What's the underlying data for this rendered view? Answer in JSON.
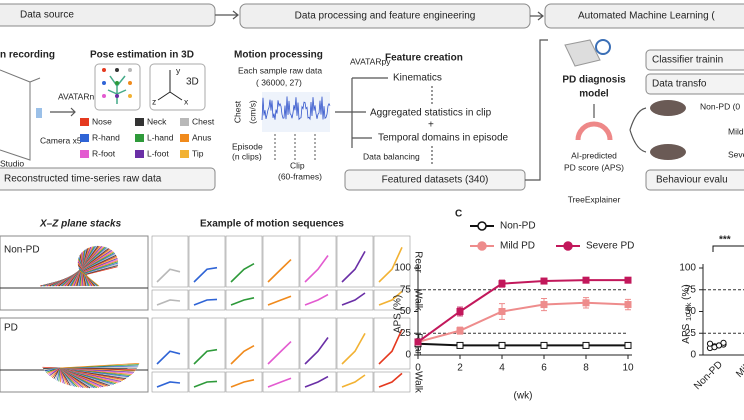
{
  "data_source": {
    "header": "Data source",
    "recording": "n recording",
    "pose": "Pose estimation in 3D",
    "net": "AVATARnet",
    "camera": "Camera x5",
    "studio": "Studio",
    "axis3d": "3D",
    "axes": [
      "y",
      "z",
      "x"
    ],
    "keypoints": [
      {
        "name": "Nose",
        "color": "#e5391f"
      },
      {
        "name": "Neck",
        "color": "#333333"
      },
      {
        "name": "Chest",
        "color": "#b8b8b8"
      },
      {
        "name": "R-hand",
        "color": "#2f64d6"
      },
      {
        "name": "L-hand",
        "color": "#2e9a3a"
      },
      {
        "name": "Anus",
        "color": "#f08a1c"
      },
      {
        "name": "R-foot",
        "color": "#e35bd0"
      },
      {
        "name": "L-foot",
        "color": "#6a2fa6"
      },
      {
        "name": "Tip",
        "color": "#f2b233"
      }
    ],
    "footer": "Reconstructed time-series raw data"
  },
  "processing": {
    "header": "Data processing and feature engineering",
    "motion": "Motion processing",
    "sample": "Each sample raw data",
    "shape": "( 36000, 27)",
    "chest": "Chest",
    "chest_unit": "(cm/s)",
    "episode": "Episode",
    "episode_n": "(n clips)",
    "clip": "Clip",
    "clip_frames": "(60-frames)",
    "tool": "AVATARpy",
    "feature": "Feature creation",
    "kinematics": "Kinematics",
    "aggregated": "Aggregated statistics in clip",
    "plus": "+",
    "temporal": "Temporal domains in episode",
    "balancing": "Data balancing",
    "featured": "Featured datasets (340)"
  },
  "automl": {
    "header": "Automated Machine Learning (",
    "classifier": "Classifier trainin",
    "transform": "Data transfo",
    "model_1": "PD diagnosis",
    "model_2": "model",
    "aps_1": "AI-predicted",
    "aps_2": "PD score (APS)",
    "explainer": "TreeExplainer",
    "nonpd": "Non-PD (0",
    "mild": "Mild",
    "severe": "Seve",
    "behaviour": "Behaviour evalu"
  },
  "motion": {
    "stacks": "X–Z plane stacks",
    "examples": "Example of motion sequences",
    "groups": [
      "Non-PD",
      "PD"
    ],
    "rows": [
      "Rear",
      "Walk",
      "Rear",
      "Walk"
    ]
  },
  "panel_c": {
    "label": "C",
    "chart_data": [
      {
        "type": "line",
        "x": [
          0,
          2,
          4,
          6,
          8,
          10
        ],
        "xlim": [
          0,
          10
        ],
        "xticks": [
          0,
          2,
          4,
          6,
          8,
          10
        ],
        "ylim": [
          0,
          100
        ],
        "yticks": [
          0,
          25,
          50,
          75,
          100
        ],
        "xlabel": "(wk)",
        "ylabel": "APS (%)",
        "hlines": [
          25,
          75
        ],
        "series": [
          {
            "name": "Non-PD",
            "color": "#111111",
            "values": [
              13,
              11,
              11,
              11,
              11,
              11
            ],
            "errors": [
              1,
              1,
              1,
              1,
              1,
              1
            ]
          },
          {
            "name": "Mild PD",
            "color": "#ee8c8c",
            "values": [
              15,
              28,
              50,
              58,
              60,
              58
            ],
            "errors": [
              3,
              4,
              9,
              7,
              6,
              6
            ]
          },
          {
            "name": "Severe PD",
            "color": "#c2185b",
            "values": [
              15,
              50,
              82,
              85,
              86,
              86
            ],
            "errors": [
              3,
              5,
              4,
              2,
              2,
              2
            ]
          }
        ]
      },
      {
        "type": "strip",
        "categories": [
          "Non-PD",
          "Mild"
        ],
        "values": [
          [
            8,
            10,
            11,
            12,
            13,
            9,
            11,
            14
          ],
          null
        ],
        "ylim": [
          0,
          100
        ],
        "yticks": [
          0,
          25,
          50,
          75,
          100
        ],
        "hlines": [
          25,
          75
        ],
        "ylabel": "APS",
        "ylabel_sub": "10 wk",
        "ylabel_unit": "(%)",
        "annotation": "***"
      }
    ]
  }
}
